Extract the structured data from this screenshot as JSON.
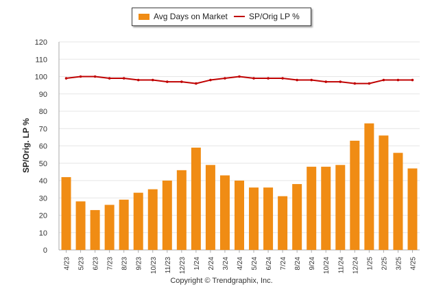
{
  "legend": {
    "bar_label": "Avg Days on Market",
    "line_label": "SP/Orig LP %"
  },
  "ylabel": "SP/Orig. LP %",
  "copyright": "Copyright © Trendgraphix, Inc.",
  "colors": {
    "bar": "#f08c14",
    "line": "#c00000",
    "grid": "#e6e6e6",
    "axis": "#aaaaaa"
  },
  "chart_data": {
    "type": "bar",
    "categories": [
      "4/23",
      "5/23",
      "6/23",
      "7/23",
      "8/23",
      "9/23",
      "10/23",
      "11/23",
      "12/23",
      "1/24",
      "2/24",
      "3/24",
      "4/24",
      "5/24",
      "6/24",
      "7/24",
      "8/24",
      "9/24",
      "10/24",
      "11/24",
      "12/24",
      "1/25",
      "2/25",
      "3/25",
      "4/25"
    ],
    "series": [
      {
        "name": "Avg Days on Market",
        "type": "bar",
        "values": [
          42,
          28,
          23,
          26,
          29,
          33,
          35,
          40,
          46,
          59,
          49,
          43,
          40,
          36,
          36,
          31,
          38,
          48,
          48,
          49,
          63,
          73,
          66,
          56,
          47
        ]
      },
      {
        "name": "SP/Orig LP %",
        "type": "line",
        "values": [
          99,
          100,
          100,
          99,
          99,
          98,
          98,
          97,
          97,
          96,
          98,
          99,
          100,
          99,
          99,
          99,
          98,
          98,
          97,
          97,
          96,
          96,
          98,
          98,
          98
        ]
      }
    ],
    "yticks": [
      0,
      10,
      20,
      30,
      40,
      50,
      60,
      70,
      80,
      90,
      100,
      110,
      120
    ],
    "ylim": [
      0,
      120
    ],
    "ylabel": "SP/Orig. LP %",
    "grid": true,
    "legend_position": "top-center"
  }
}
